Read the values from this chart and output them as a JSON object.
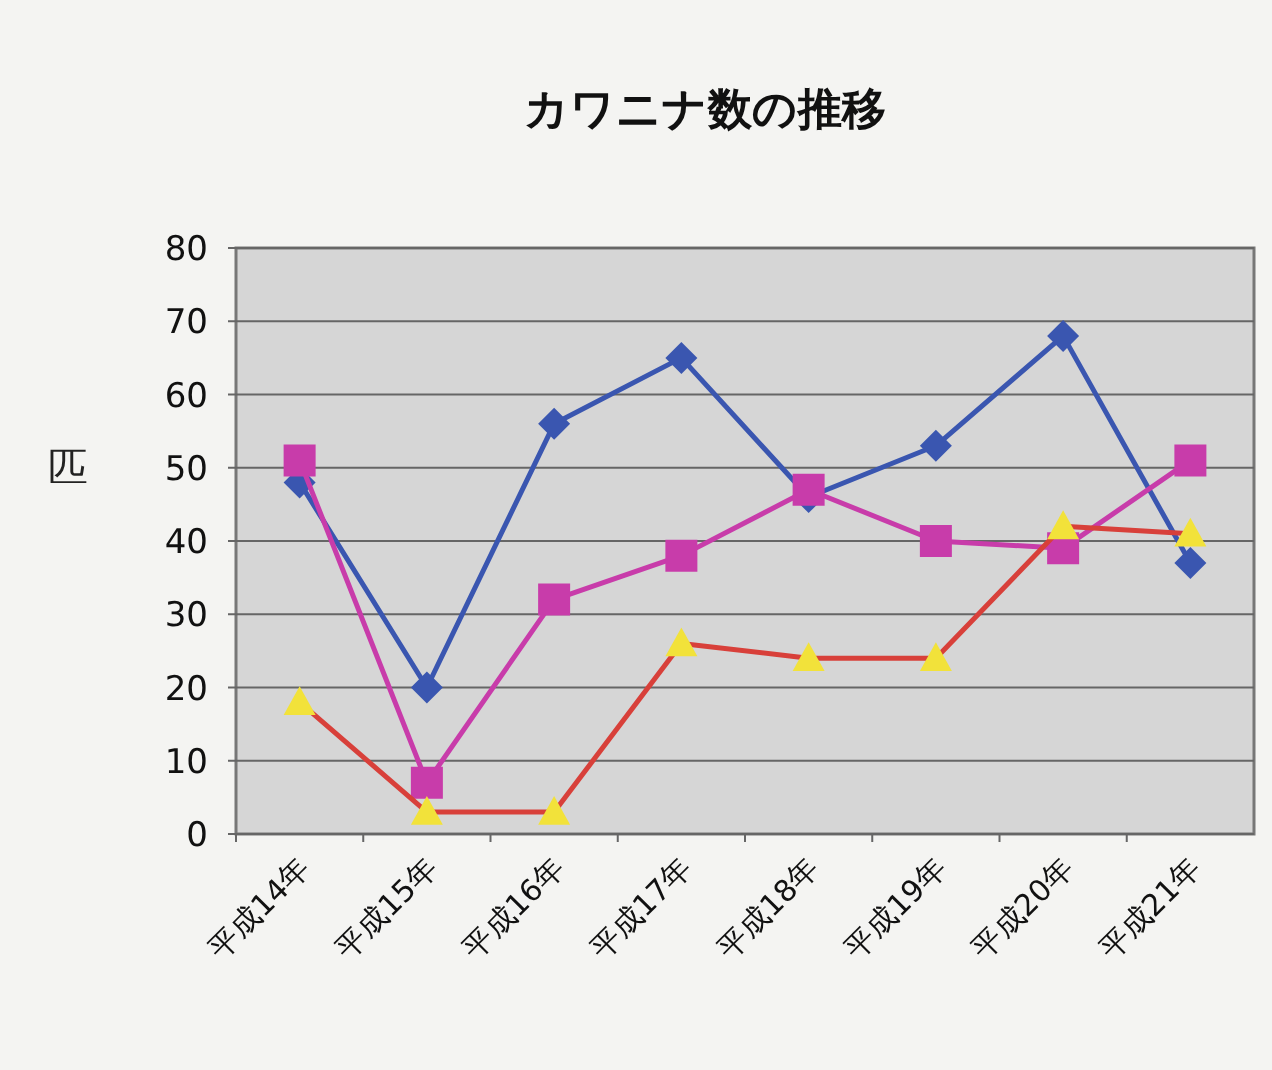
{
  "chart_data": {
    "type": "line",
    "title": "カワニナ数の推移",
    "ylabel": "匹",
    "categories": [
      "平成14年",
      "平成15年",
      "平成16年",
      "平成17年",
      "平成18年",
      "平成19年",
      "平成20年",
      "平成21年"
    ],
    "ylim": [
      0,
      80
    ],
    "yticks": [
      0,
      10,
      20,
      30,
      40,
      50,
      60,
      70,
      80
    ],
    "grid": "y",
    "series": [
      {
        "color": "#3a56b0",
        "marker": "diamond",
        "values": [
          48,
          20,
          56,
          65,
          46,
          53,
          68,
          37
        ]
      },
      {
        "color": "#c83caa",
        "marker": "square",
        "values": [
          51,
          7,
          32,
          38,
          47,
          40,
          39,
          51
        ]
      },
      {
        "color": "#d8403a",
        "colors": [
          "#f2e23a",
          "#f2e23a",
          "#f2e23a",
          "#f2e23a",
          "#f2e23a",
          "#f2e23a",
          "#f2e23a",
          "#f2e23a"
        ],
        "marker": "triangle",
        "values": [
          18,
          3,
          3,
          26,
          24,
          24,
          42,
          41
        ]
      }
    ]
  }
}
